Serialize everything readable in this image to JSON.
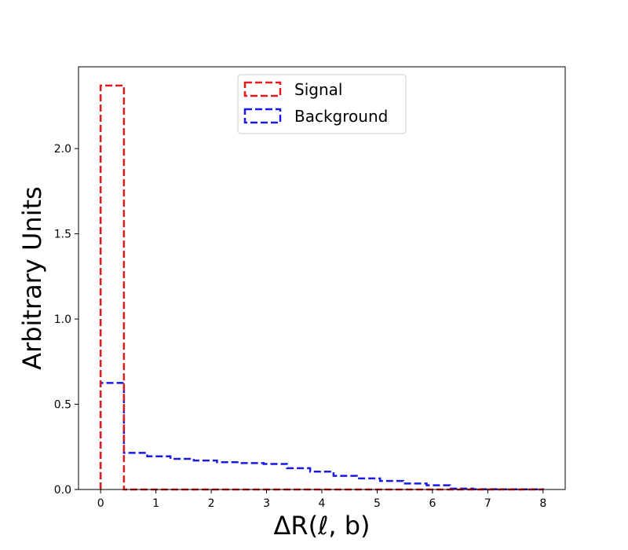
{
  "chart_data": {
    "type": "histogram",
    "xlabel": "ΔR(ℓ, b)",
    "ylabel": "Arbitrary Units",
    "xlim": [
      -0.4,
      8.4
    ],
    "ylim": [
      0,
      2.48
    ],
    "xticks": [
      0,
      1,
      2,
      3,
      4,
      5,
      6,
      7,
      8
    ],
    "yticks": [
      0.0,
      0.5,
      1.0,
      1.5,
      2.0
    ],
    "xtick_labels": [
      "0",
      "1",
      "2",
      "3",
      "4",
      "5",
      "6",
      "7",
      "8"
    ],
    "ytick_labels": [
      "0.0",
      "0.5",
      "1.0",
      "1.5",
      "2.0"
    ],
    "bin_edges": [
      0,
      0.421,
      0.842,
      1.263,
      1.684,
      2.105,
      2.526,
      2.947,
      3.368,
      3.789,
      4.211,
      4.632,
      5.053,
      5.474,
      5.895,
      6.316,
      6.737,
      7.158,
      7.579,
      8.0
    ],
    "series": [
      {
        "name": "Signal",
        "color": "#e31a1c",
        "values": [
          2.37,
          0.0,
          0.0,
          0.0,
          0.0,
          0.0,
          0.0,
          0.0,
          0.0,
          0.0,
          0.0,
          0.0,
          0.0,
          0.0,
          0.0,
          0.0,
          0.0,
          0.0,
          0.0
        ]
      },
      {
        "name": "Background",
        "color": "#1a1ae3",
        "values": [
          0.625,
          0.215,
          0.195,
          0.18,
          0.17,
          0.16,
          0.155,
          0.15,
          0.125,
          0.105,
          0.08,
          0.065,
          0.05,
          0.035,
          0.025,
          0.005,
          0.002,
          0.001,
          0.001
        ]
      }
    ],
    "legend_position": "top-center",
    "grid": false
  }
}
